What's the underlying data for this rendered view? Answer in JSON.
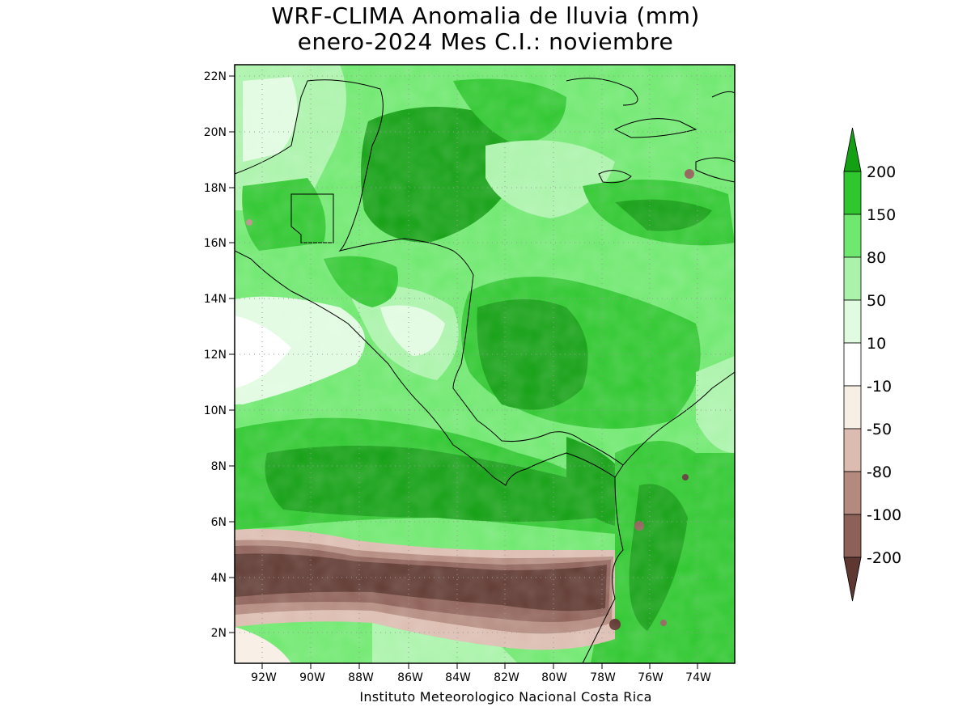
{
  "title": {
    "line1": "WRF-CLIMA Anomalia de lluvia (mm)",
    "line2": "enero-2024 Mes C.I.: noviembre"
  },
  "map": {
    "lat_ticks": [
      "22N",
      "20N",
      "18N",
      "16N",
      "14N",
      "12N",
      "10N",
      "8N",
      "6N",
      "4N",
      "2N"
    ],
    "lon_ticks": [
      "92W",
      "90W",
      "88W",
      "86W",
      "84W",
      "82W",
      "80W",
      "78W",
      "76W",
      "74W"
    ],
    "extent": {
      "lon": [
        -93.4,
        -72.4
      ],
      "lat": [
        0.9,
        22.4
      ]
    }
  },
  "colorbar": {
    "labels": [
      "200",
      "150",
      "80",
      "50",
      "10",
      "-10",
      "-50",
      "-80",
      "-100",
      "-200"
    ],
    "colors": {
      "gt200": "#14a014",
      "150_200": "#2ec72e",
      "80_150": "#6ee86e",
      "50_80": "#aaf3aa",
      "10_50": "#e0fbe0",
      "m10_10": "#ffffff",
      "m50_m10": "#f7eee4",
      "m80_m50": "#dcbcb0",
      "m100_m80": "#b48a7e",
      "m200_m100": "#8e6158",
      "lt_m200": "#5e3830"
    }
  },
  "footer": "Instituto Meteorologico Nacional Costa Rica"
}
